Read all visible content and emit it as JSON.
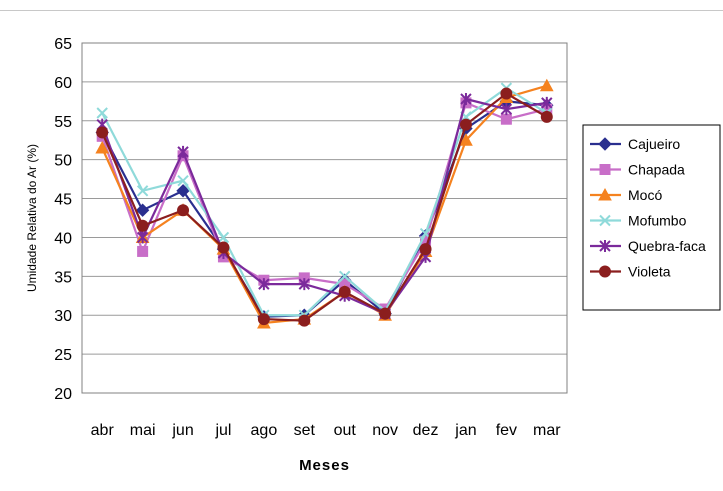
{
  "chart_data": {
    "type": "line",
    "title": "",
    "xlabel": "Meses",
    "ylabel": "Umidade Relativa do Ar (%)",
    "ylim": [
      20,
      65
    ],
    "yticks": [
      "20",
      "25",
      "30",
      "35",
      "40",
      "45",
      "50",
      "55",
      "60",
      "65"
    ],
    "grid": "horizontal",
    "legend_position": "right",
    "categories": [
      "abr",
      "mai",
      "jun",
      "jul",
      "ago",
      "set",
      "out",
      "nov",
      "dez",
      "jan",
      "fev",
      "mar"
    ],
    "series": [
      {
        "name": "Cajueiro",
        "color": "#2a2f8f",
        "marker": "diamond",
        "values": [
          53.5,
          43.5,
          46.0,
          38.5,
          29.8,
          30.0,
          34.5,
          30.2,
          40.2,
          54.0,
          57.5,
          57.0
        ]
      },
      {
        "name": "Chapada",
        "color": "#c86ec8",
        "marker": "square",
        "values": [
          53.0,
          38.2,
          50.5,
          37.5,
          34.5,
          34.8,
          34.0,
          30.8,
          39.5,
          57.3,
          55.2,
          56.5
        ]
      },
      {
        "name": "Mocó",
        "color": "#f5821f",
        "marker": "triangle",
        "values": [
          51.5,
          40.0,
          43.5,
          38.5,
          29.0,
          29.5,
          33.0,
          30.0,
          38.2,
          52.5,
          58.0,
          59.5
        ]
      },
      {
        "name": "Mofumbo",
        "color": "#8fdada",
        "marker": "x",
        "values": [
          56.0,
          46.0,
          47.3,
          40.0,
          30.0,
          30.0,
          35.0,
          30.5,
          40.5,
          55.5,
          59.2,
          56.0
        ]
      },
      {
        "name": "Quebra-faca",
        "color": "#7b2a9b",
        "marker": "star",
        "values": [
          54.5,
          40.0,
          51.0,
          38.0,
          34.0,
          34.0,
          32.5,
          30.2,
          37.5,
          57.8,
          56.5,
          57.3
        ]
      },
      {
        "name": "Violeta",
        "color": "#8b1e1e",
        "marker": "circle",
        "values": [
          53.5,
          41.5,
          43.5,
          38.7,
          29.5,
          29.3,
          33.0,
          30.2,
          38.5,
          54.5,
          58.5,
          55.5
        ]
      }
    ]
  }
}
